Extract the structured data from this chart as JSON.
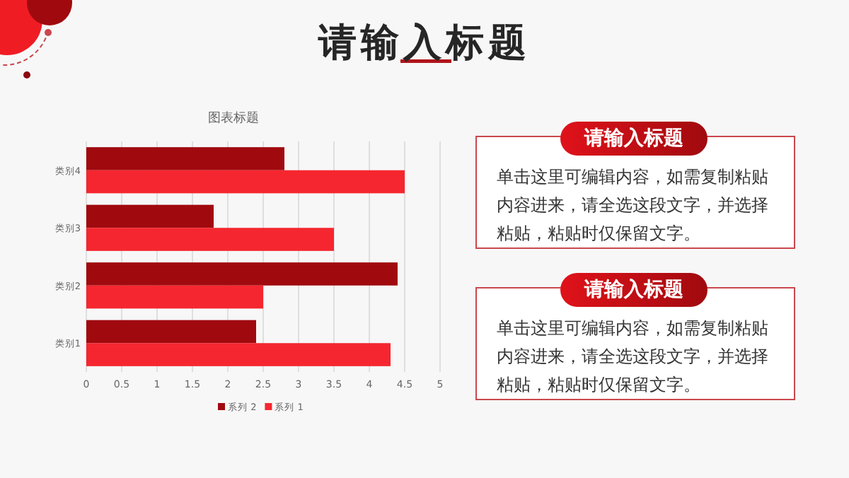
{
  "chart_data": [
    {
      "type": "bar",
      "orientation": "horizontal",
      "title": "图表标题",
      "categories": [
        "类别4",
        "类别3",
        "类别2",
        "类别1"
      ],
      "series": [
        {
          "name": "系列 2",
          "color": "#a00a0f",
          "values": [
            2.8,
            1.8,
            4.4,
            2.4
          ]
        },
        {
          "name": "系列 1",
          "color": "#f5262f",
          "values": [
            4.5,
            3.5,
            2.5,
            4.3
          ]
        }
      ],
      "xlim": [
        0,
        5
      ],
      "xticks": [
        0,
        0.5,
        1,
        1.5,
        2,
        2.5,
        3,
        3.5,
        4,
        4.5,
        5
      ],
      "grid": "x",
      "legend": "bottom"
    },
    {
      "type": "other",
      "title": "请输入标题",
      "annotations": [
        "请输入标题",
        "单击这里可编辑内容，如需复制粘贴内容进来，请全选这段文字，并选择粘贴，粘贴时仅保留文字。",
        "请输入标题",
        "单击这里可编辑内容，如需复制粘贴内容进来，请全选这段文字，并选择粘贴，粘贴时仅保留文字。"
      ]
    }
  ]
}
